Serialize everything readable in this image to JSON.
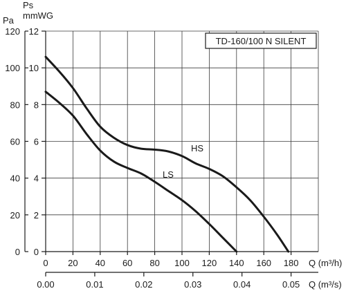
{
  "chart_data": {
    "type": "line",
    "title": "TD-160/100 N SILENT",
    "x": {
      "label": "Q (m³/h)",
      "ticks": [
        0,
        20,
        40,
        60,
        80,
        100,
        120,
        140,
        160,
        180
      ],
      "range": [
        0,
        200
      ]
    },
    "x2": {
      "label": "Q (m³/s)",
      "ticks": [
        "0.00",
        "0.01",
        "0.02",
        "0.03",
        "0.04",
        "0.05"
      ]
    },
    "y_left": {
      "unit": "Pa",
      "ticks": [
        0,
        20,
        40,
        60,
        80,
        100,
        120
      ],
      "range": [
        0,
        120
      ]
    },
    "y_right": {
      "unit_line1": "Ps",
      "unit_line2": "mmWG",
      "ticks": [
        0,
        2,
        4,
        6,
        8,
        10,
        12
      ]
    },
    "series": [
      {
        "name": "HS",
        "x": [
          0,
          10,
          20,
          30,
          40,
          50,
          60,
          70,
          80,
          90,
          100,
          110,
          120,
          130,
          140,
          150,
          160,
          170,
          178
        ],
        "y": [
          106,
          98,
          89,
          78,
          68,
          62,
          58,
          56,
          55.5,
          54.5,
          52,
          48,
          45,
          41,
          35,
          28,
          19,
          9,
          0
        ]
      },
      {
        "name": "LS",
        "x": [
          0,
          10,
          20,
          30,
          40,
          50,
          60,
          70,
          80,
          90,
          100,
          110,
          120,
          130,
          140
        ],
        "y": [
          87,
          81,
          74,
          64,
          55,
          49,
          45.5,
          42.5,
          38,
          33,
          28,
          22,
          15,
          7.5,
          0
        ]
      }
    ],
    "grid": true
  }
}
